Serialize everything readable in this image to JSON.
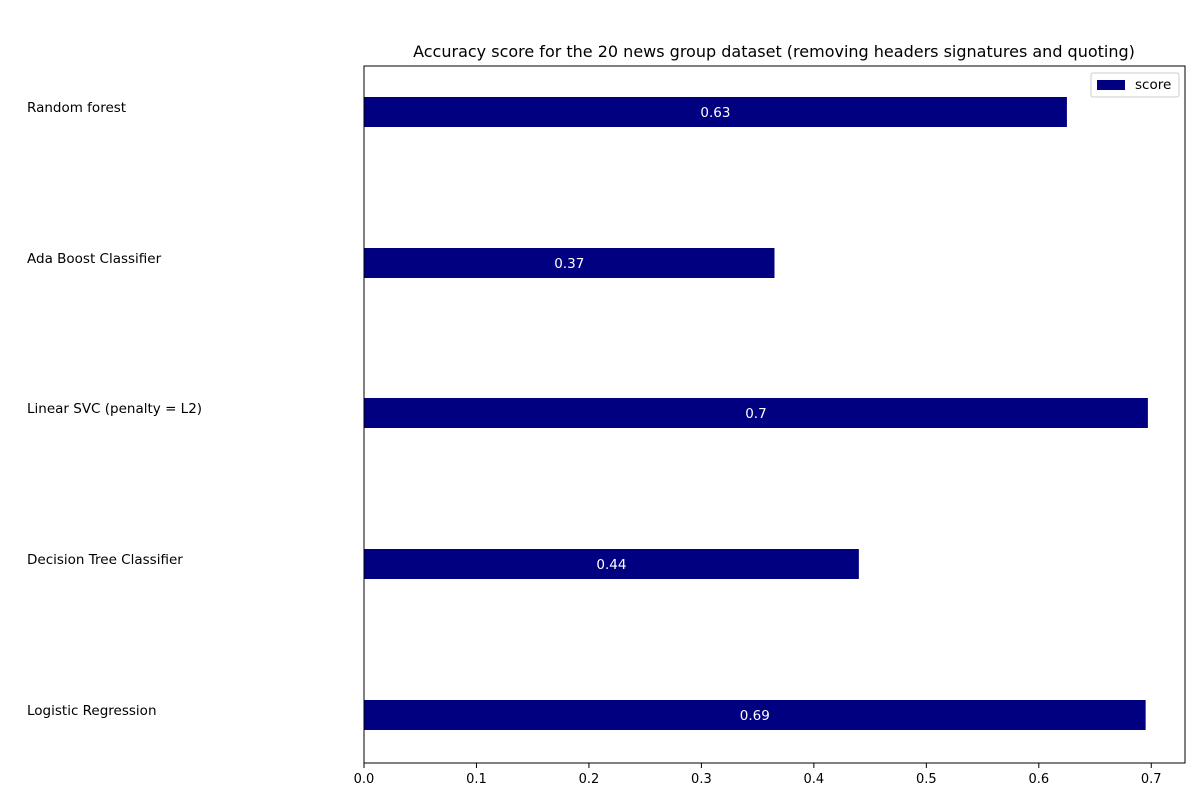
{
  "chart_data": {
    "type": "bar",
    "orientation": "horizontal",
    "title": "Accuracy score for the 20 news group dataset (removing headers signatures and quoting)",
    "xlabel": "",
    "ylabel": "",
    "categories": [
      "Random forest",
      "Ada Boost Classifier",
      "Linear SVC (penalty = L2)",
      "Decision Tree Classifier",
      "Logistic Regression"
    ],
    "series": [
      {
        "name": "score",
        "values": [
          0.625,
          0.365,
          0.697,
          0.44,
          0.695
        ],
        "labels": [
          "0.63",
          "0.37",
          "0.7",
          "0.44",
          "0.69"
        ],
        "color": "#000080"
      }
    ],
    "xlim": [
      0.0,
      0.73
    ],
    "xticks": [
      "0.0",
      "0.1",
      "0.2",
      "0.3",
      "0.4",
      "0.5",
      "0.6",
      "0.7"
    ],
    "grid": false,
    "legend_position": "top-right"
  }
}
